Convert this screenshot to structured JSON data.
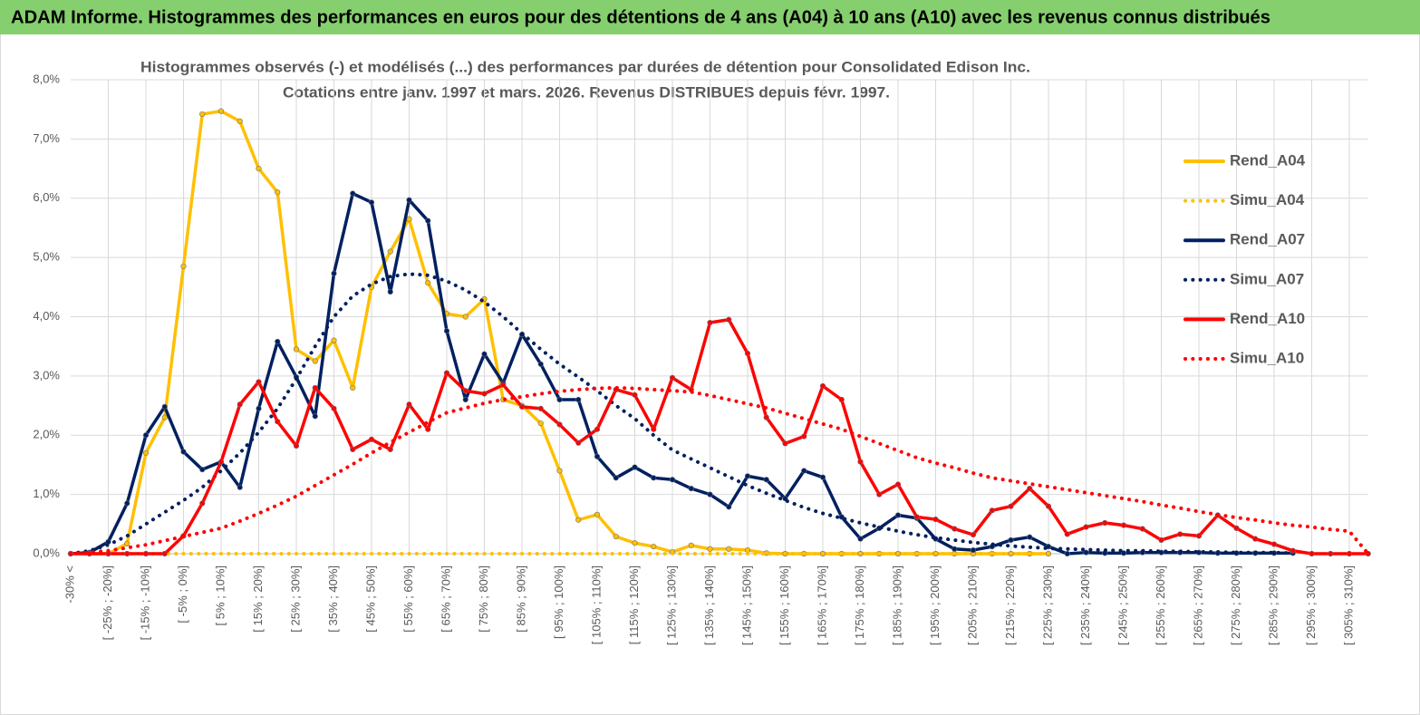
{
  "header": {
    "title": "ADAM Informe. Histogrammes des performances en euros pour des détentions de 4 ans (A04) à 10 ans (A10) avec les revenus connus distribués"
  },
  "chart_data": {
    "type": "line",
    "title": "Histogrammes observés (-) et modélisés (...) des performances par durées de détention pour Consolidated Edison Inc.",
    "subtitle": "Cotations entre janv. 1997 et mars. 2026. Revenus DISTRIBUES depuis févr. 1997.",
    "categories": [
      "-30% <",
      null,
      "[ -25% ; -20%]",
      null,
      "[ -15% ; -10%]",
      null,
      "[ -5% ; 0%]",
      null,
      "[ 5% ; 10%]",
      null,
      "[ 15% ; 20%]",
      null,
      "[ 25% ; 30%]",
      null,
      "[ 35% ; 40%]",
      null,
      "[ 45% ; 50%]",
      null,
      "[ 55% ; 60%]",
      null,
      "[ 65% ; 70%]",
      null,
      "[ 75% ; 80%]",
      null,
      "[ 85% ; 90%]",
      null,
      "[ 95% ; 100%]",
      null,
      "[ 105% ; 110%]",
      null,
      "[ 115% ; 120%]",
      null,
      "[ 125% ; 130%]",
      null,
      "[ 135% ; 140%]",
      null,
      "[ 145% ; 150%]",
      null,
      "[ 155% ; 160%]",
      null,
      "[ 165% ; 170%]",
      null,
      "[ 175% ; 180%]",
      null,
      "[ 185% ; 190%]",
      null,
      "[ 195% ; 200%]",
      null,
      "[ 205% ; 210%]",
      null,
      "[ 215% ; 220%]",
      null,
      "[ 225% ; 230%]",
      null,
      "[ 235% ; 240%]",
      null,
      "[ 245% ; 250%]",
      null,
      "[ 255% ; 260%]",
      null,
      "[ 265% ; 270%]",
      null,
      "[ 275% ; 280%]",
      null,
      "[ 285% ; 290%]",
      null,
      "[ 295% ; 300%]",
      null,
      "[ 305% ; 310%]",
      null
    ],
    "series": [
      {
        "name": "Rend_A04",
        "color": "#ffc000",
        "style": "solid",
        "values": [
          0,
          0,
          0,
          0.17,
          1.7,
          2.3,
          4.85,
          7.42,
          7.47,
          7.3,
          6.5,
          6.1,
          3.45,
          3.25,
          3.6,
          2.8,
          4.5,
          5.1,
          5.65,
          4.57,
          4.05,
          4.0,
          4.3,
          2.6,
          2.5,
          2.2,
          1.4,
          0.57,
          0.66,
          0.29,
          0.18,
          0.12,
          0.03,
          0.14,
          0.08,
          0.08,
          0.06,
          0.01,
          0,
          0,
          0,
          0,
          0,
          0,
          0,
          0,
          0,
          0,
          0,
          0,
          0,
          0,
          0,
          null,
          null,
          null,
          null,
          null,
          null,
          null,
          null,
          null,
          null,
          null,
          null,
          null,
          null,
          null,
          null,
          null
        ]
      },
      {
        "name": "Simu_A04",
        "color": "#ffc000",
        "style": "dotted",
        "values": [
          0,
          0,
          0,
          0,
          0,
          0,
          0,
          0,
          0,
          0,
          0,
          0,
          0,
          0,
          0,
          0,
          0,
          0,
          0,
          0,
          0,
          0,
          0,
          0,
          0,
          0,
          0,
          0,
          0,
          0,
          0,
          0,
          0,
          0,
          0,
          0,
          0,
          0,
          0,
          0,
          0,
          0,
          0,
          0,
          0,
          0,
          0,
          0,
          0,
          0,
          0,
          0,
          0,
          null,
          null,
          null,
          null,
          null,
          null,
          null,
          null,
          null,
          null,
          null,
          null,
          null,
          null,
          null,
          null,
          null
        ]
      },
      {
        "name": "Rend_A07",
        "color": "#002060",
        "style": "solid",
        "values": [
          0,
          0.02,
          0.2,
          0.85,
          2.0,
          2.48,
          1.72,
          1.42,
          1.55,
          1.12,
          2.45,
          3.58,
          2.98,
          2.32,
          4.73,
          6.08,
          5.93,
          4.42,
          5.97,
          5.62,
          3.76,
          2.6,
          3.37,
          2.88,
          3.7,
          3.2,
          2.6,
          2.6,
          1.64,
          1.28,
          1.46,
          1.28,
          1.25,
          1.1,
          1.0,
          0.79,
          1.31,
          1.25,
          0.93,
          1.4,
          1.29,
          0.62,
          0.25,
          0.43,
          0.65,
          0.6,
          0.25,
          0.08,
          0.06,
          0.12,
          0.23,
          0.28,
          0.12,
          0,
          0.02,
          0.01,
          0.01,
          0.02,
          0.02,
          0.02,
          0.02,
          0.01,
          0.01,
          0.01,
          0.01,
          0.01,
          null,
          null,
          null,
          null
        ]
      },
      {
        "name": "Simu_A07",
        "color": "#002060",
        "style": "dotted",
        "values": [
          0,
          0.05,
          0.15,
          0.3,
          0.5,
          0.7,
          0.9,
          1.12,
          1.4,
          1.7,
          2.05,
          2.45,
          2.95,
          3.5,
          4.0,
          4.35,
          4.55,
          4.68,
          4.72,
          4.7,
          4.6,
          4.45,
          4.25,
          4.0,
          3.72,
          3.45,
          3.2,
          2.98,
          2.75,
          2.5,
          2.28,
          2.0,
          1.75,
          1.6,
          1.45,
          1.3,
          1.15,
          1.02,
          0.9,
          0.78,
          0.68,
          0.6,
          0.52,
          0.45,
          0.38,
          0.32,
          0.27,
          0.23,
          0.19,
          0.16,
          0.13,
          0.11,
          0.09,
          0.08,
          0.07,
          0.06,
          0.05,
          0.05,
          0.04,
          0.04,
          0.03,
          0.03,
          0.02,
          0.02,
          0.02,
          0.01,
          null,
          null,
          null,
          null
        ]
      },
      {
        "name": "Rend_A10",
        "color": "#ff0000",
        "style": "solid",
        "values": [
          0,
          0,
          0,
          0,
          0,
          0,
          0.3,
          0.85,
          1.55,
          2.52,
          2.9,
          2.23,
          1.82,
          2.8,
          2.45,
          1.76,
          1.93,
          1.76,
          2.52,
          2.1,
          3.05,
          2.75,
          2.7,
          2.85,
          2.48,
          2.45,
          2.18,
          1.87,
          2.1,
          2.77,
          2.68,
          2.1,
          2.97,
          2.77,
          3.9,
          3.95,
          3.38,
          2.3,
          1.86,
          1.98,
          2.83,
          2.6,
          1.55,
          1.0,
          1.17,
          0.62,
          0.58,
          0.42,
          0.32,
          0.73,
          0.8,
          1.1,
          0.8,
          0.33,
          0.45,
          0.52,
          0.48,
          0.42,
          0.23,
          0.33,
          0.3,
          0.65,
          0.43,
          0.25,
          0.16,
          0.05,
          0,
          0,
          0,
          0
        ]
      },
      {
        "name": "Simu_A10",
        "color": "#ff0000",
        "style": "dotted",
        "values": [
          0,
          0.02,
          0.05,
          0.1,
          0.15,
          0.22,
          0.29,
          0.36,
          0.43,
          0.55,
          0.68,
          0.82,
          0.97,
          1.15,
          1.33,
          1.51,
          1.7,
          1.88,
          2.05,
          2.22,
          2.38,
          2.46,
          2.54,
          2.6,
          2.65,
          2.7,
          2.74,
          2.77,
          2.79,
          2.8,
          2.79,
          2.77,
          2.75,
          2.73,
          2.67,
          2.6,
          2.53,
          2.46,
          2.37,
          2.28,
          2.19,
          2.1,
          1.98,
          1.86,
          1.74,
          1.62,
          1.53,
          1.45,
          1.36,
          1.28,
          1.23,
          1.18,
          1.13,
          1.08,
          1.03,
          0.98,
          0.93,
          0.88,
          0.82,
          0.77,
          0.71,
          0.66,
          0.61,
          0.57,
          0.52,
          0.48,
          0.45,
          0.41,
          0.38,
          0
        ]
      }
    ],
    "ylim": [
      0,
      8
    ],
    "yticks": [
      {
        "value": 0,
        "label": "0,0%"
      },
      {
        "value": 1,
        "label": "1,0%"
      },
      {
        "value": 2,
        "label": "2,0%"
      },
      {
        "value": 3,
        "label": "3,0%"
      },
      {
        "value": 4,
        "label": "4,0%"
      },
      {
        "value": 5,
        "label": "5,0%"
      },
      {
        "value": 6,
        "label": "6,0%"
      },
      {
        "value": 7,
        "label": "7,0%"
      },
      {
        "value": 8,
        "label": "8,0%"
      }
    ],
    "grid": true,
    "markers": true,
    "legend": "right"
  }
}
